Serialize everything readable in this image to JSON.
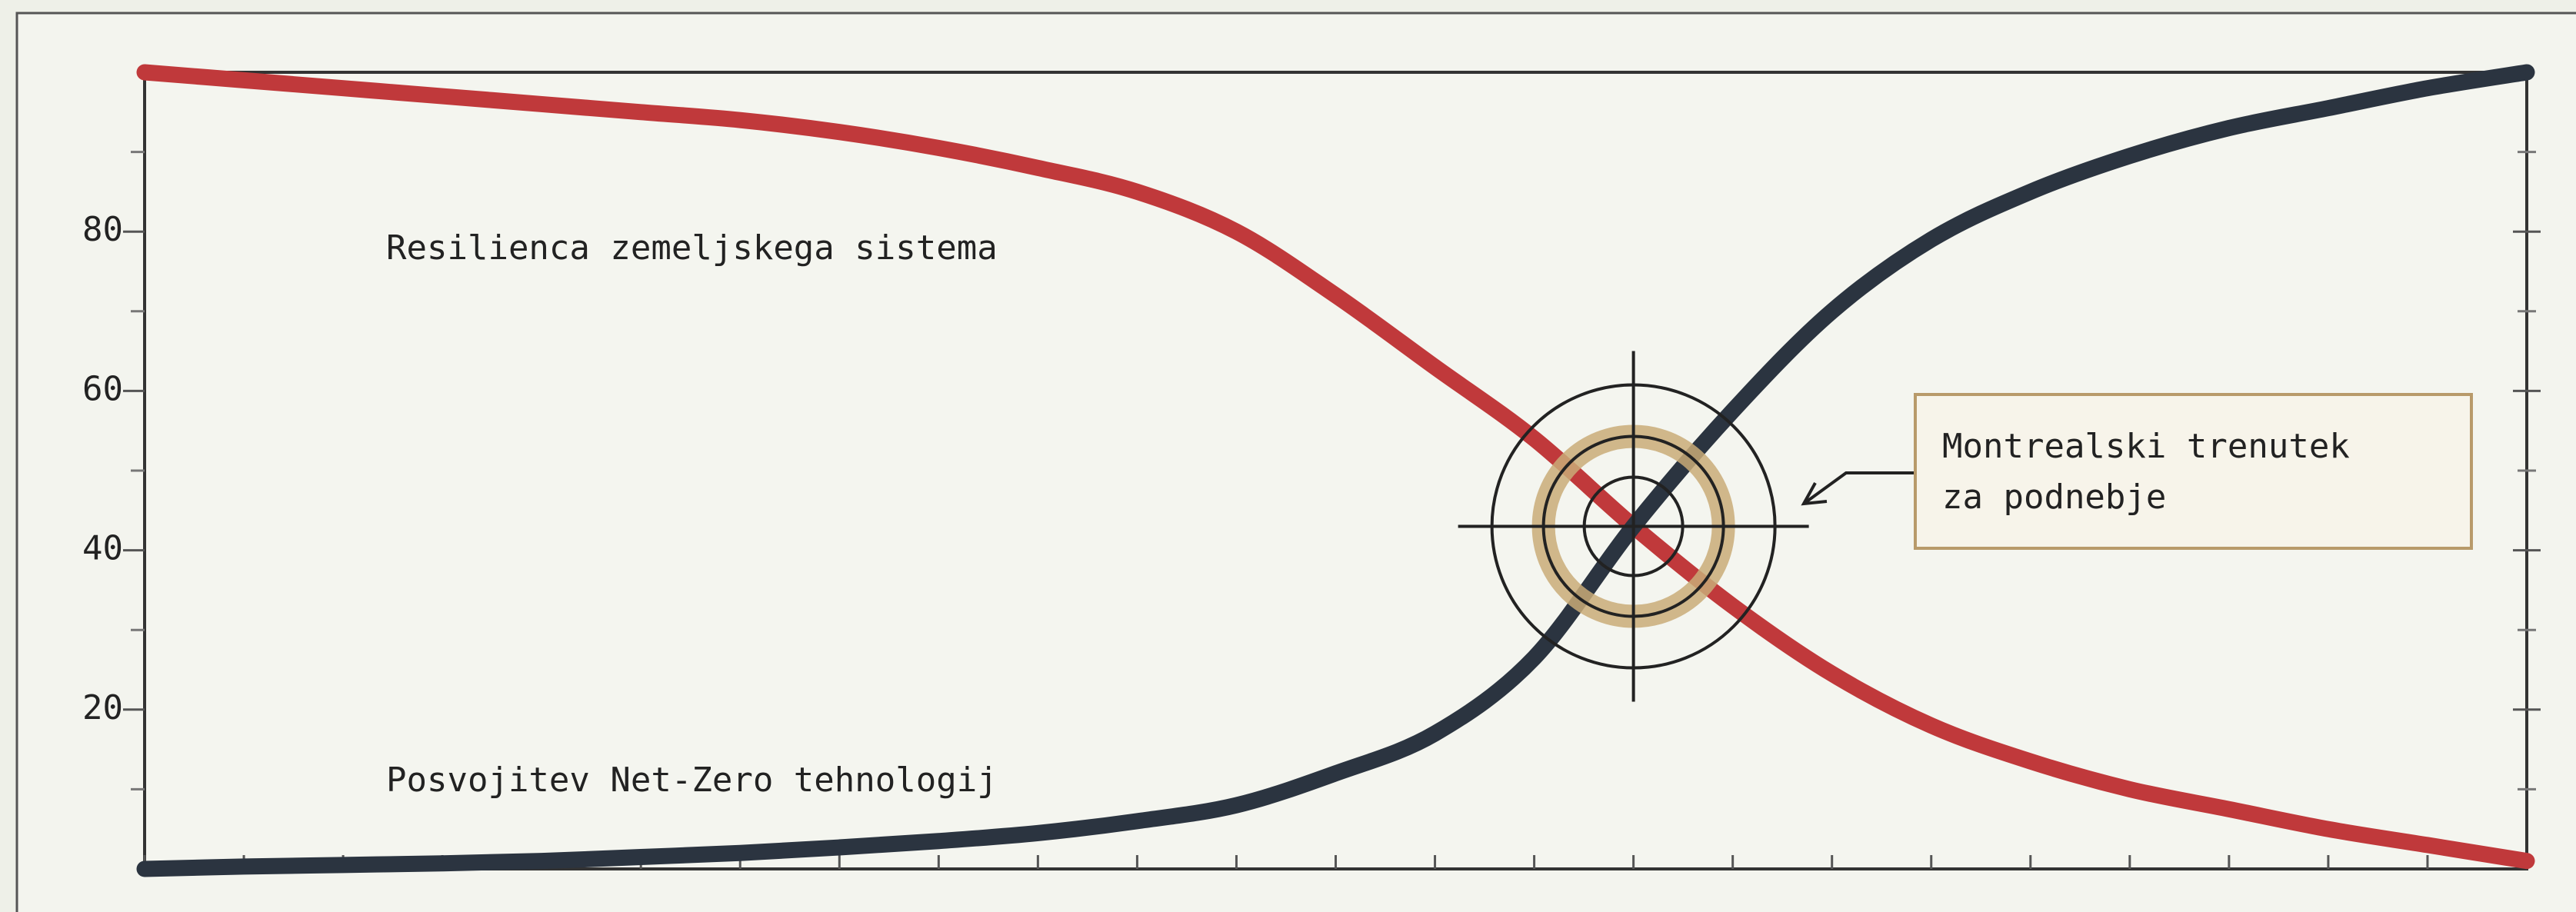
{
  "chart_data": {
    "type": "line",
    "x": [
      0,
      1,
      2,
      3,
      4,
      5,
      6,
      7,
      8,
      9,
      10,
      11,
      12,
      13,
      14,
      15,
      16,
      17,
      18,
      19,
      20,
      21,
      22,
      23,
      24
    ],
    "xlim": [
      0,
      24
    ],
    "xticks": [
      0,
      1,
      2,
      3,
      4,
      5,
      6,
      7,
      8,
      9,
      10,
      11,
      12,
      13,
      14,
      15,
      16,
      17,
      18,
      19,
      20,
      21,
      22,
      23,
      24
    ],
    "ylim": [
      0,
      100
    ],
    "yticks": [
      20,
      40,
      60,
      80
    ],
    "yminor_ticks": [
      10,
      30,
      50,
      70,
      90
    ],
    "series": [
      {
        "name": "Resilienca zemeljskega sistema",
        "color": "#c0393b",
        "values": [
          100,
          99,
          98,
          97,
          96,
          95,
          94,
          92.5,
          90.5,
          88,
          85,
          80,
          72,
          63,
          54,
          43,
          33,
          24.5,
          18,
          13.5,
          10,
          7.5,
          5,
          3,
          1
        ]
      },
      {
        "name": "Posvojitev Net-Zero tehnologij",
        "color": "#2b3440",
        "values": [
          0,
          0.3,
          0.5,
          0.7,
          1,
          1.5,
          2,
          2.7,
          3.5,
          4.5,
          6,
          8,
          12,
          17,
          26.5,
          43,
          57.5,
          70,
          79,
          85,
          89.5,
          93,
          95.5,
          98,
          100
        ]
      }
    ],
    "annotation": {
      "lines": [
        "Montrealski trenutek",
        "za podnebje"
      ],
      "x": 15,
      "y": 43
    }
  }
}
